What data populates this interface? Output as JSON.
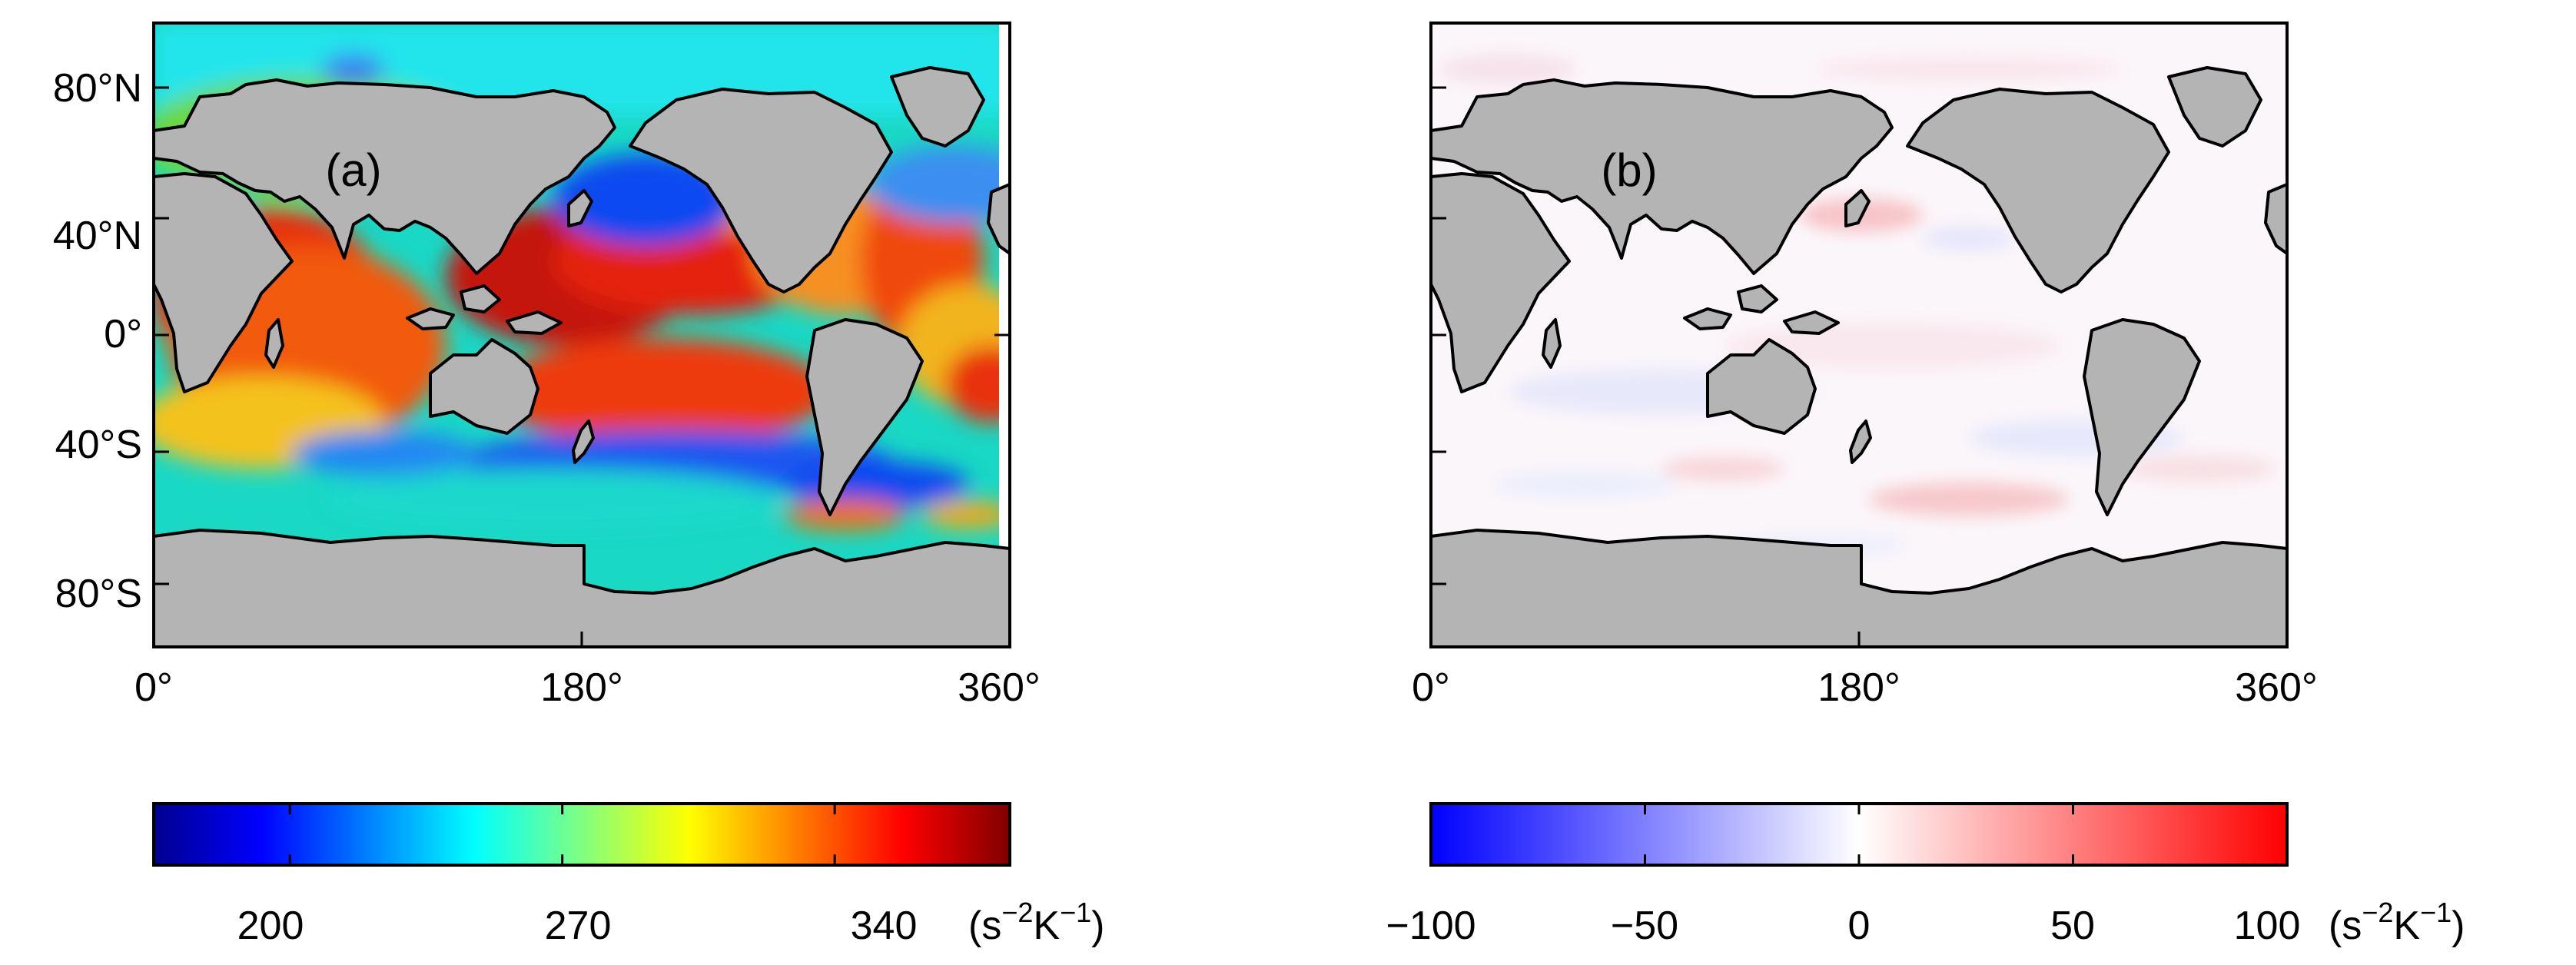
{
  "panels": [
    {
      "label": "(a)",
      "x_ticks": [
        "0°",
        "180°",
        "360°"
      ],
      "y_ticks": [
        "80°N",
        "40°N",
        "0°",
        "40°S",
        "80°S"
      ],
      "lon_range": [
        0,
        360
      ],
      "lat_range": [
        -90,
        90
      ],
      "land_color": "#b4b4b4",
      "colorbar": {
        "ticks": [
          "200",
          "270",
          "340"
        ],
        "unit_base": "(s",
        "unit_exp1": "−2",
        "unit_mid": "K",
        "unit_exp2": "−1",
        "unit_close": ")",
        "colormap": "jet",
        "range": [
          165,
          385
        ],
        "tick_values": [
          200,
          270,
          340
        ]
      }
    },
    {
      "label": "(b)",
      "x_ticks": [
        "0°",
        "180°",
        "360°"
      ],
      "lon_range": [
        0,
        360
      ],
      "lat_range": [
        -90,
        90
      ],
      "land_color": "#b4b4b4",
      "colorbar": {
        "ticks": [
          "−100",
          "−50",
          "0",
          "50",
          "100"
        ],
        "unit_base": "(s",
        "unit_exp1": "−2",
        "unit_mid": "K",
        "unit_exp2": "−1",
        "unit_close": ")",
        "colormap": "blue-white-red",
        "range": [
          -100,
          100
        ],
        "tick_values": [
          -100,
          -50,
          0,
          50,
          100
        ]
      }
    }
  ]
}
